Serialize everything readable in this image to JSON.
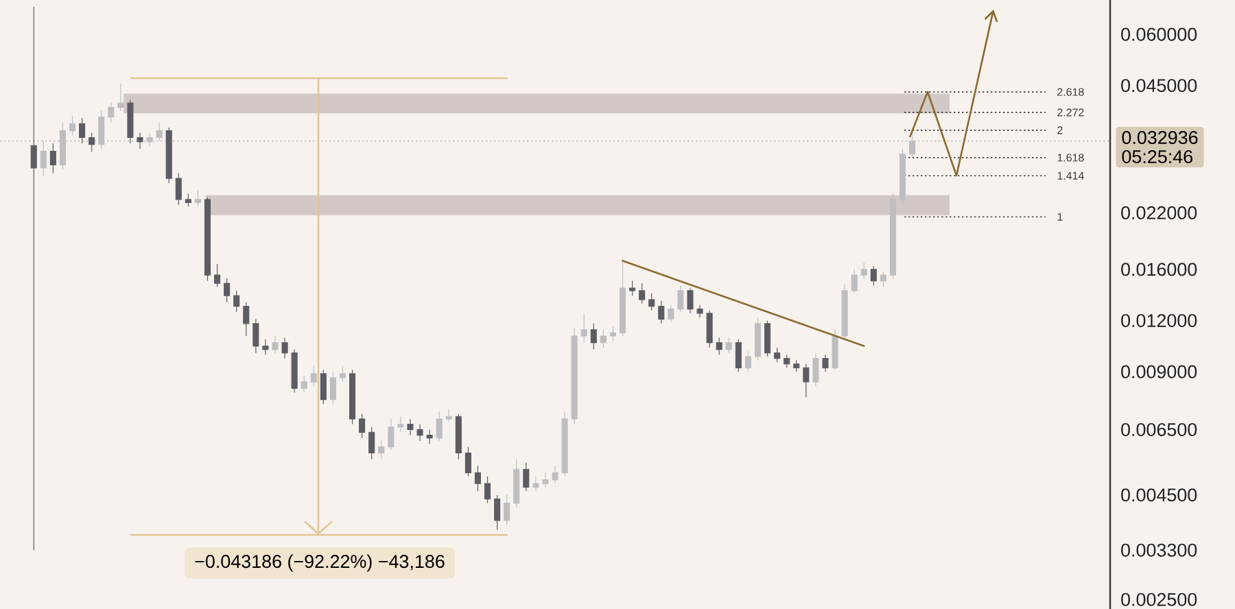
{
  "chart_data": {
    "type": "candlestick",
    "categories": [
      null,
      null,
      null,
      null,
      null,
      null,
      null,
      null,
      null,
      null,
      null,
      null,
      null,
      null,
      null,
      null,
      null,
      null,
      null,
      null,
      null,
      null,
      null,
      null,
      null,
      null,
      null,
      null,
      null,
      null,
      null,
      null,
      null,
      null,
      null,
      null,
      null,
      null,
      null,
      null,
      null,
      null,
      null,
      null,
      null,
      null,
      null,
      null,
      null,
      null,
      null,
      null,
      null,
      null,
      null,
      null,
      null,
      null,
      null,
      null,
      null,
      null,
      null,
      null,
      null,
      null,
      null,
      null,
      null,
      null,
      null,
      null,
      null,
      null,
      null,
      null,
      null,
      null,
      null,
      null,
      null,
      null,
      null,
      null,
      null,
      null,
      null,
      null,
      null,
      null,
      null,
      null,
      null,
      null,
      null,
      null,
      null,
      null,
      null,
      null,
      null,
      null,
      null,
      null,
      null,
      null,
      null,
      null,
      null,
      null,
      null,
      null,
      null,
      null,
      null
    ],
    "ohlc": [
      null,
      null,
      null,
      [
        0.0321,
        0.07,
        0.0033,
        0.0283
      ],
      [
        0.0283,
        0.033,
        0.027,
        0.0311
      ],
      [
        0.0311,
        0.0325,
        0.0275,
        0.0288
      ],
      [
        0.0288,
        0.0365,
        0.028,
        0.0349
      ],
      [
        0.0349,
        0.038,
        0.034,
        0.0363
      ],
      [
        0.0363,
        0.0375,
        0.0325,
        0.0336
      ],
      [
        0.0336,
        0.0345,
        0.031,
        0.0323
      ],
      [
        0.0323,
        0.039,
        0.0315,
        0.0377
      ],
      [
        0.0377,
        0.041,
        0.0365,
        0.0398
      ],
      [
        0.0398,
        0.0455,
        0.039,
        0.0408
      ],
      [
        0.0408,
        0.0415,
        0.0325,
        0.0336
      ],
      [
        0.0336,
        0.0345,
        0.0315,
        0.0328
      ],
      [
        0.0328,
        0.0345,
        0.032,
        0.0336
      ],
      [
        0.0336,
        0.0365,
        0.033,
        0.0349
      ],
      [
        0.0349,
        0.0355,
        0.026,
        0.0267
      ],
      [
        0.0267,
        0.0275,
        0.023,
        0.0237
      ],
      [
        0.0237,
        0.0245,
        0.0228,
        0.0233
      ],
      [
        0.0233,
        0.025,
        0.0228,
        0.0237
      ],
      [
        0.0237,
        0.024,
        0.015,
        0.0155
      ],
      [
        0.0155,
        0.0165,
        0.0145,
        0.0148
      ],
      [
        0.0148,
        0.0152,
        0.0133,
        0.0138
      ],
      [
        0.0138,
        0.0142,
        0.0126,
        0.013
      ],
      [
        0.013,
        0.0133,
        0.011,
        0.0118
      ],
      [
        0.0118,
        0.0121,
        0.01,
        0.0104
      ],
      [
        0.0104,
        0.0108,
        0.0099,
        0.0102
      ],
      [
        0.0102,
        0.011,
        0.01,
        0.0106
      ],
      [
        0.0106,
        0.0109,
        0.0097,
        0.01
      ],
      [
        0.01,
        0.0102,
        0.008,
        0.0082
      ],
      [
        0.0082,
        0.0088,
        0.008,
        0.0085
      ],
      [
        0.0085,
        0.0093,
        0.0083,
        0.0089
      ],
      [
        0.0089,
        0.0091,
        0.0075,
        0.0077
      ],
      [
        0.0077,
        0.009,
        0.0075,
        0.0087
      ],
      [
        0.0087,
        0.0093,
        0.0085,
        0.0089
      ],
      [
        0.0089,
        0.0091,
        0.0067,
        0.0069
      ],
      [
        0.0069,
        0.0071,
        0.0062,
        0.0064
      ],
      [
        0.0064,
        0.0066,
        0.0055,
        0.0057
      ],
      [
        0.0057,
        0.0061,
        0.0055,
        0.0059
      ],
      [
        0.0059,
        0.0069,
        0.0058,
        0.0066
      ],
      [
        0.0066,
        0.007,
        0.0064,
        0.0067
      ],
      [
        0.0067,
        0.0069,
        0.0063,
        0.0065
      ],
      [
        0.0065,
        0.0067,
        0.0061,
        0.0063
      ],
      [
        0.0063,
        0.0065,
        0.006,
        0.0062
      ],
      [
        0.0062,
        0.0072,
        0.0061,
        0.0069
      ],
      [
        0.0069,
        0.0073,
        0.0068,
        0.007
      ],
      [
        0.007,
        0.0071,
        0.0055,
        0.0057
      ],
      [
        0.0057,
        0.0059,
        0.005,
        0.0051
      ],
      [
        0.0051,
        0.0053,
        0.0046,
        0.0048
      ],
      [
        0.0048,
        0.005,
        0.0043,
        0.0044
      ],
      [
        0.0044,
        0.0045,
        0.0037,
        0.0039
      ],
      [
        0.0039,
        0.0045,
        0.0038,
        0.0043
      ],
      [
        0.0043,
        0.0055,
        0.0042,
        0.0052
      ],
      [
        0.0052,
        0.0054,
        0.0046,
        0.0047
      ],
      [
        0.0047,
        0.005,
        0.0046,
        0.0048
      ],
      [
        0.0048,
        0.0051,
        0.0047,
        0.0049
      ],
      [
        0.0049,
        0.0053,
        0.0048,
        0.0051
      ],
      [
        0.0051,
        0.0072,
        0.005,
        0.0069
      ],
      [
        0.0069,
        0.0115,
        0.0067,
        0.011
      ],
      [
        0.011,
        0.0125,
        0.0106,
        0.0114
      ],
      [
        0.0114,
        0.0118,
        0.0102,
        0.0106
      ],
      [
        0.0106,
        0.0114,
        0.0103,
        0.011
      ],
      [
        0.011,
        0.0116,
        0.0107,
        0.0112
      ],
      [
        0.0112,
        0.0168,
        0.011,
        0.0144
      ],
      [
        0.0144,
        0.015,
        0.0138,
        0.0142
      ],
      [
        0.0142,
        0.0148,
        0.0132,
        0.0135
      ],
      [
        0.0135,
        0.014,
        0.0127,
        0.013
      ],
      [
        0.013,
        0.0134,
        0.0118,
        0.0121
      ],
      [
        0.0121,
        0.0131,
        0.0119,
        0.0128
      ],
      [
        0.0128,
        0.0146,
        0.0126,
        0.0142
      ],
      [
        0.0142,
        0.0144,
        0.0125,
        0.0128
      ],
      [
        0.0128,
        0.0131,
        0.0122,
        0.0125
      ],
      [
        0.0125,
        0.0127,
        0.0103,
        0.0106
      ],
      [
        0.0106,
        0.0109,
        0.0099,
        0.0102
      ],
      [
        0.0102,
        0.0109,
        0.01,
        0.0106
      ],
      [
        0.0106,
        0.0108,
        0.009,
        0.0092
      ],
      [
        0.0092,
        0.0101,
        0.009,
        0.0098
      ],
      [
        0.0098,
        0.0122,
        0.0096,
        0.0118
      ],
      [
        0.0118,
        0.012,
        0.0098,
        0.01
      ],
      [
        0.01,
        0.0103,
        0.0095,
        0.0097
      ],
      [
        0.0097,
        0.0099,
        0.0092,
        0.0094
      ],
      [
        0.0094,
        0.0096,
        0.009,
        0.0092
      ],
      [
        0.0092,
        0.0094,
        0.0078,
        0.0085
      ],
      [
        0.0085,
        0.01,
        0.0083,
        0.0097
      ],
      [
        0.0097,
        0.0099,
        0.009,
        0.0092
      ],
      [
        0.0092,
        0.0114,
        0.0091,
        0.011
      ],
      [
        0.011,
        0.0147,
        0.0108,
        0.0142
      ],
      [
        0.0142,
        0.016,
        0.014,
        0.0155
      ],
      [
        0.0155,
        0.0166,
        0.0152,
        0.016
      ],
      [
        0.016,
        0.0163,
        0.0146,
        0.015
      ],
      [
        0.015,
        0.0158,
        0.0145,
        0.0155
      ],
      [
        0.0155,
        0.0245,
        0.0152,
        0.0237
      ],
      [
        0.0237,
        0.0315,
        0.023,
        0.0306
      ],
      [
        0.0306,
        0.035,
        0.03,
        0.0329
      ],
      null,
      null,
      null,
      null,
      null,
      null,
      null,
      null,
      null,
      null,
      null,
      null,
      null,
      null,
      null,
      null,
      null,
      null,
      null,
      null
    ],
    "colors": [
      null,
      null,
      null,
      "#5c5c62",
      "#bebec0",
      "#5c5c62",
      "#bebec0",
      "#bebec0",
      "#5c5c62",
      "#5c5c62",
      "#bebec0",
      "#bebec0",
      "#bebec0",
      "#5c5c62",
      "#5c5c62",
      "#bebec0",
      "#bebec0",
      "#5c5c62",
      "#5c5c62",
      "#5c5c62",
      "#bebec0",
      "#5c5c62",
      "#5c5c62",
      "#5c5c62",
      "#5c5c62",
      "#5c5c62",
      "#5c5c62",
      "#5c5c62",
      "#bebec0",
      "#5c5c62",
      "#5c5c62",
      "#bebec0",
      "#bebec0",
      "#5c5c62",
      "#bebec0",
      "#bebec0",
      "#5c5c62",
      "#5c5c62",
      "#5c5c62",
      "#bebec0",
      "#bebec0",
      "#bebec0",
      "#5c5c62",
      "#5c5c62",
      "#5c5c62",
      "#bebec0",
      "#bebec0",
      "#5c5c62",
      "#5c5c62",
      "#5c5c62",
      "#5c5c62",
      "#5c5c62",
      "#bebec0",
      "#bebec0",
      "#5c5c62",
      "#bebec0",
      "#bebec0",
      "#bebec0",
      "#bebec0",
      "#bebec0",
      "#bebec0",
      "#5c5c62",
      "#bebec0",
      "#bebec0",
      "#bebec0",
      "#5c5c62",
      "#5c5c62",
      "#5c5c62",
      "#5c5c62",
      "#bebec0",
      "#bebec0",
      "#5c5c62",
      "#5c5c62",
      "#5c5c62",
      "#5c5c62",
      "#bebec0",
      "#5c5c62",
      "#bebec0",
      "#bebec0",
      "#5c5c62",
      "#5c5c62",
      "#5c5c62",
      "#5c5c62",
      "#5c5c62",
      "#bebec0",
      "#5c5c62",
      "#bebec0",
      "#bebec0",
      "#bebec0",
      "#bebec0",
      "#5c5c62",
      "#bebec0",
      "#bebec0",
      "#bebec0",
      "#bebec0",
      null,
      null,
      null,
      null,
      null,
      null,
      null,
      null,
      null,
      null,
      null,
      null,
      null,
      null,
      null,
      null,
      null,
      null,
      null,
      null
    ],
    "series": [
      {
        "type": "line",
        "color": "#8b6a2e",
        "values": [
          null,
          null,
          null,
          null,
          null,
          null,
          null,
          null,
          null,
          null,
          null,
          null,
          null,
          null,
          null,
          null,
          null,
          null,
          null,
          null,
          null,
          null,
          null,
          null,
          null,
          null,
          null,
          null,
          null,
          null,
          null,
          null,
          null,
          null,
          null,
          null,
          null,
          null,
          null,
          null,
          null,
          null,
          null,
          null,
          null,
          null,
          null,
          null,
          null,
          null,
          null,
          null,
          null,
          null,
          null,
          null,
          null,
          null,
          null,
          null,
          null,
          null,
          null,
          null,
          0.0168,
          null,
          null,
          null,
          null,
          null,
          null,
          null,
          null,
          null,
          null,
          null,
          null,
          null,
          null,
          null,
          null,
          null,
          null,
          null,
          null,
          null,
          null,
          null,
          null,
          0.0104,
          null,
          null,
          null,
          null,
          null,
          null,
          null,
          null,
          null,
          null,
          null,
          null,
          null,
          null,
          null,
          null,
          null,
          null,
          null,
          null,
          null,
          null,
          null,
          null,
          null
        ]
      }
    ],
    "ylim": [
      0.00237,
      0.0728
    ],
    "log": "y",
    "tick_labels": "y",
    "yticks": [
      {
        "value": 0.06,
        "label": "0.060000"
      },
      {
        "value": 0.045,
        "label": "0.045000"
      },
      {
        "value": 0.032936,
        "label": "0.032936"
      },
      {
        "value": 0.022,
        "label": "0.022000"
      },
      {
        "value": 0.016,
        "label": "0.016000"
      },
      {
        "value": 0.012,
        "label": "0.012000"
      },
      {
        "value": 0.009,
        "label": "0.009000"
      },
      {
        "value": 0.0065,
        "label": "0.006500"
      },
      {
        "value": 0.0045,
        "label": "0.004500"
      },
      {
        "value": 0.0033,
        "label": "0.003300"
      },
      {
        "value": 0.0025,
        "label": "0.002500"
      }
    ],
    "ref_lines": [
      {
        "axis": "y",
        "value": 0.032936,
        "color": "#c9c0bd",
        "line_style": "dotted"
      },
      {
        "axis": "y",
        "value": 0.0434,
        "color": "#3a3a3a",
        "line_style": "dotted"
      },
      {
        "axis": "y",
        "value": 0.0387,
        "color": "#3a3a3a",
        "line_style": "dotted"
      },
      {
        "axis": "y",
        "value": 0.035,
        "color": "#3a3a3a",
        "line_style": "dotted"
      },
      {
        "axis": "y",
        "value": 0.03,
        "color": "#3a3a3a",
        "line_style": "dotted"
      },
      {
        "axis": "y",
        "value": 0.0271,
        "color": "#3a3a3a",
        "line_style": "dotted"
      },
      {
        "axis": "y",
        "value": 0.0215,
        "color": "#3a3a3a",
        "line_style": "dotted"
      }
    ],
    "bands": [
      {
        "axis": "y",
        "from": 0.0385,
        "to": 0.043,
        "color": "#d2c9c7"
      },
      {
        "axis": "y",
        "from": 0.0217,
        "to": 0.0243,
        "color": "#d2c9c7"
      }
    ],
    "annotations": [
      "05:25:46",
      "2.618",
      "2.272",
      "2",
      "1.618",
      "1.414",
      "1",
      "−0.043186 (−92.22%) −43,186"
    ]
  }
}
